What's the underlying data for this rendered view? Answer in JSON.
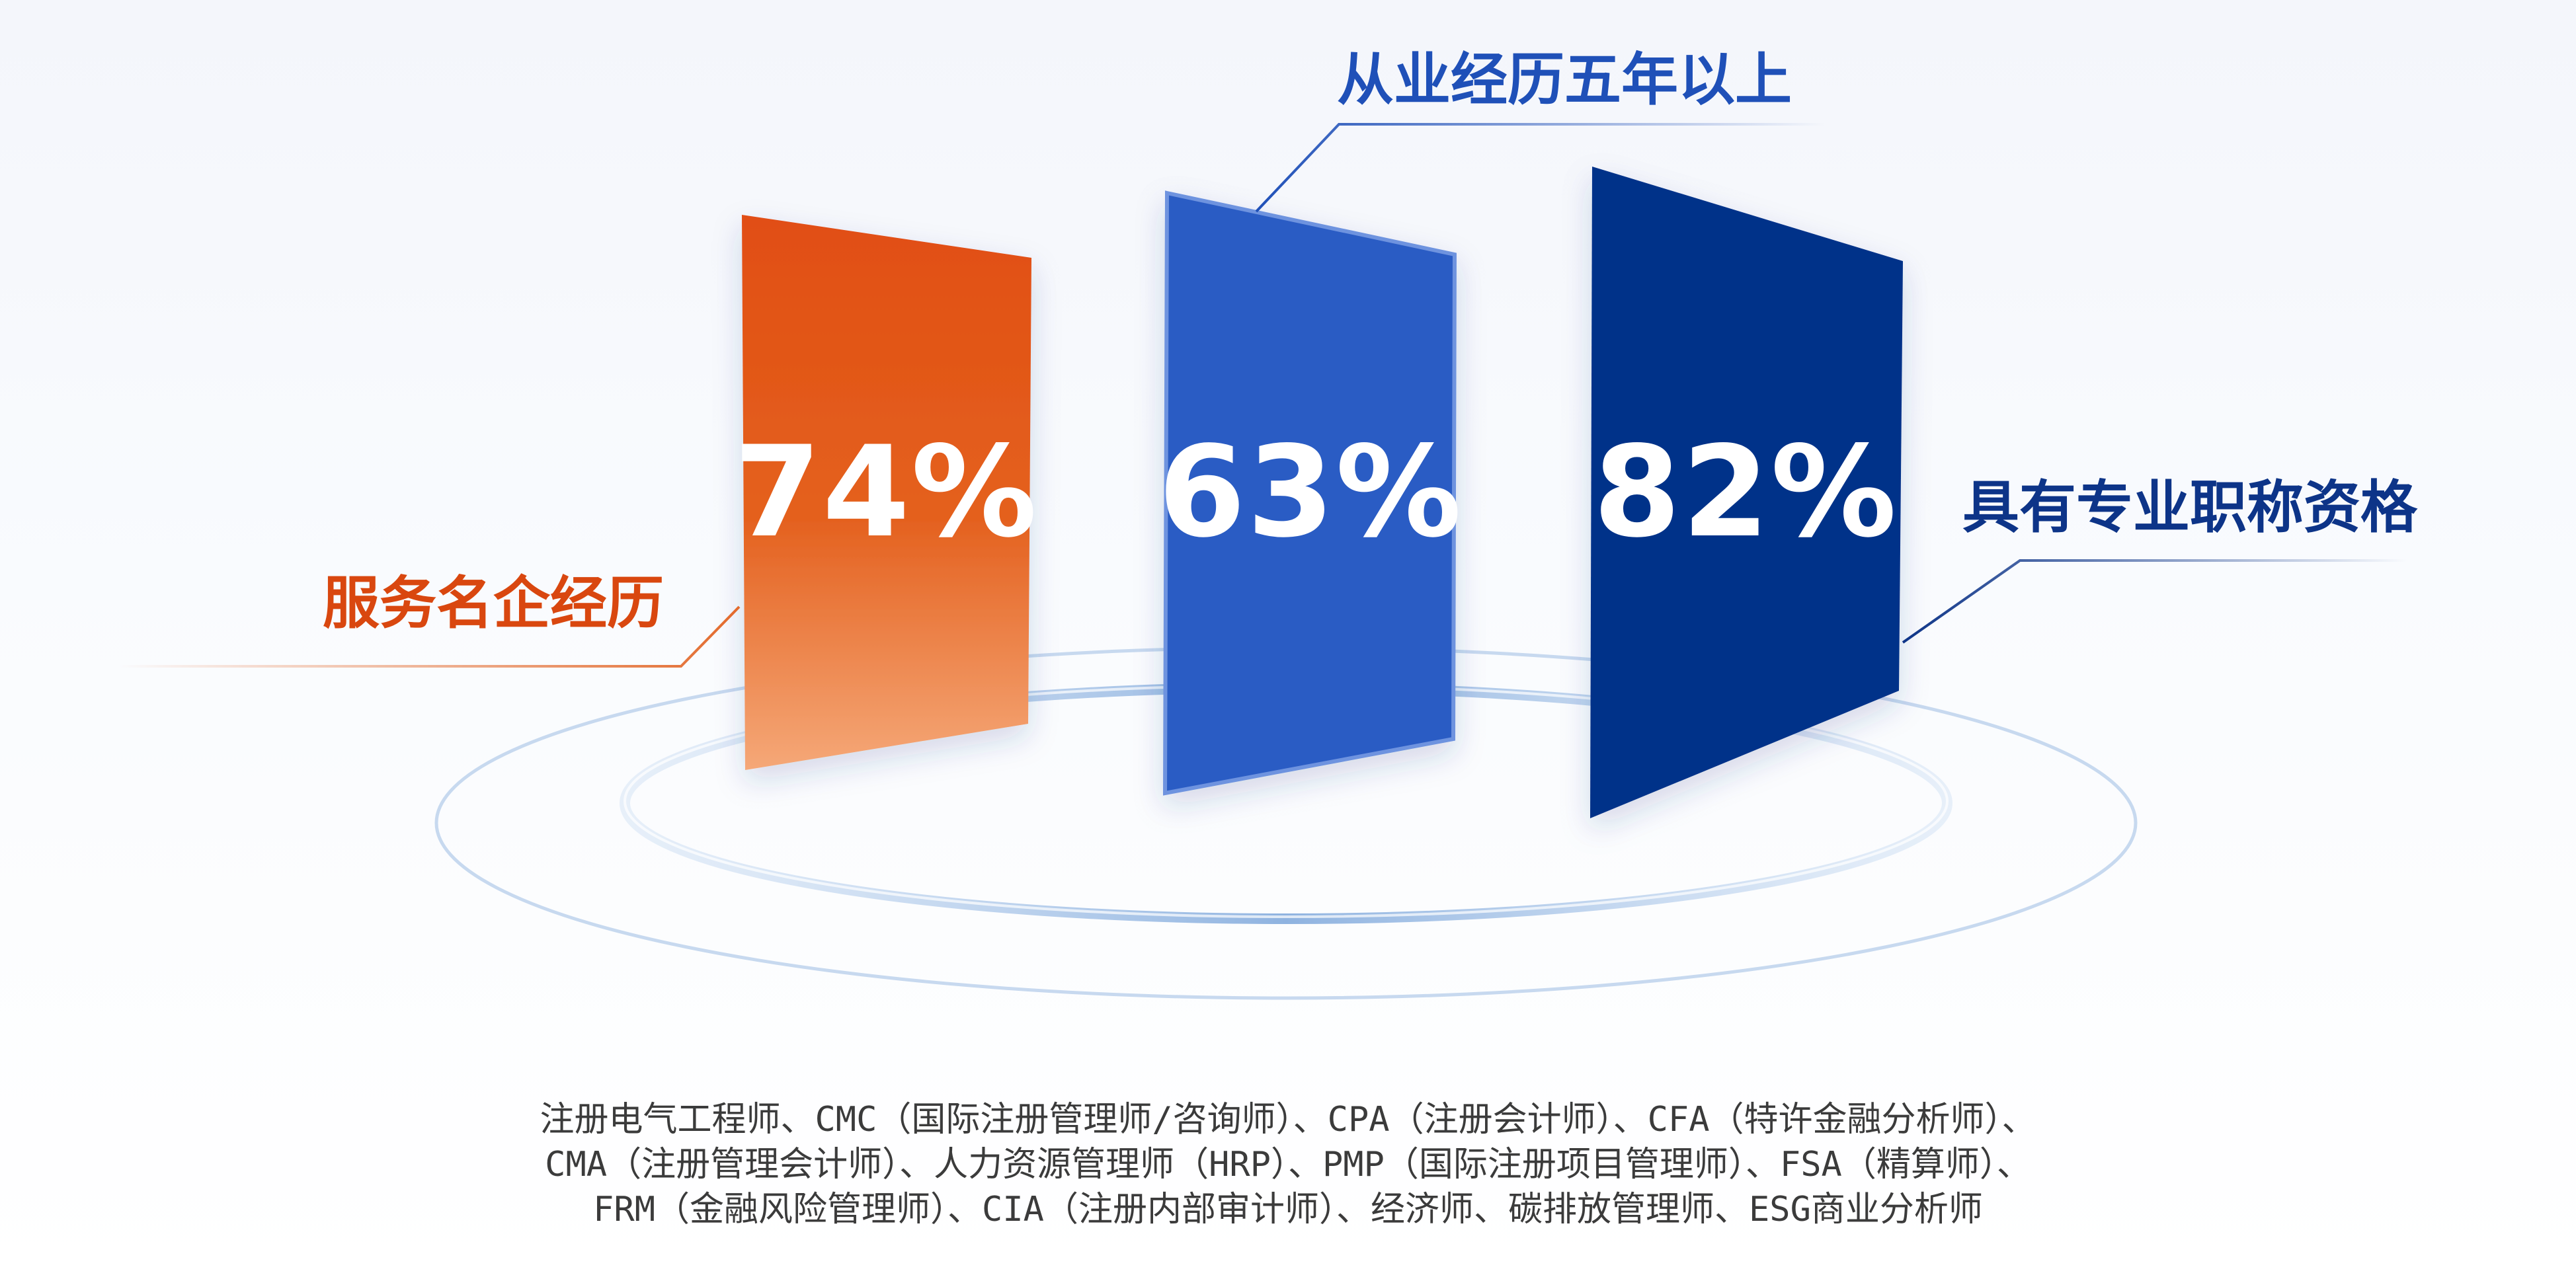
{
  "stats": [
    {
      "value": "74%",
      "label": "服务名企经历",
      "color": "#e04f12"
    },
    {
      "value": "63%",
      "label": "从业经历五年以上",
      "color": "#2b5cc4"
    },
    {
      "value": "82%",
      "label": "具有专业职称资格",
      "color": "#063189"
    }
  ],
  "certifications": [
    "注册电气工程师、CMC（国际注册管理师/咨询师）、CPA（注册会计师）、CFA（特许金融分析师）、",
    "CMA（注册管理会计师）、人力资源管理师（HRP）、PMP（国际注册项目管理师）、FSA（精算师）、",
    "FRM（金融风险管理师）、CIA（注册内部审计师）、经济师、碳排放管理师、ESG商业分析师"
  ]
}
